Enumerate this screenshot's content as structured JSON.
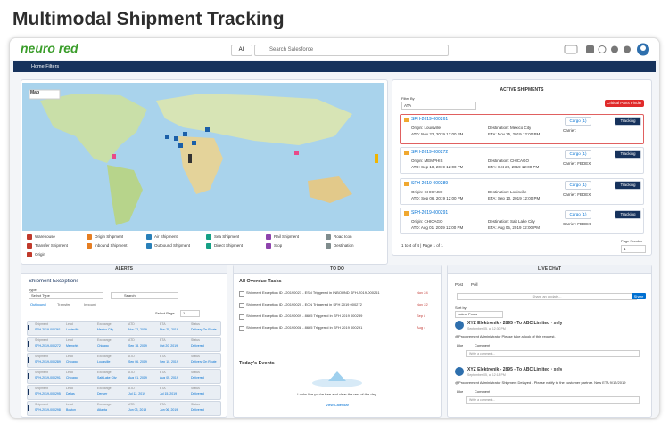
{
  "title": "Multimodal Shipment Tracking",
  "header": {
    "logo": "neuro red",
    "search_scope": "All",
    "search_placeholder": "Search Salesforce"
  },
  "nav": {
    "home_filters": "Home Filters"
  },
  "map": {
    "label": "Map",
    "legend": [
      "Warehouse",
      "Origin Shipment",
      "Air Shipment",
      "Sea Shipment",
      "Rail Shipment",
      "Road Icon",
      "Transfer Shipment",
      "Inbound Shipment",
      "Outbound Shipment",
      "Direct Shipment",
      "Stop",
      "Destination",
      "Origin"
    ]
  },
  "active_shipments": {
    "title": "ACTIVE SHIPMENTS",
    "filter_label": "Filter By",
    "filter_value": "ATA",
    "finder_button": "Critical Parts Finder",
    "shipments": [
      {
        "id": "SFH-2019-000261",
        "origin": "Origin: Louisville",
        "destination": "Destination: Mexico City",
        "atd": "ATD: Nov 22, 2019 12:00 PM",
        "eta": "ETA: Nov 25, 2019 12:00 PM",
        "carrier": "Carrier:",
        "cargo": "Cargo (1)",
        "tracking": "Tracking"
      },
      {
        "id": "SFH-2019-000272",
        "origin": "Origin: MEMPHIS",
        "destination": "Destination: CHICAGO",
        "atd": "ATD: Sep 18, 2019 12:00 PM",
        "eta": "ETA: Oct 20, 2019 12:00 PM",
        "carrier": "Carrier: FEDEX",
        "cargo": "Cargo (1)",
        "tracking": "Tracking"
      },
      {
        "id": "SFH-2019-000289",
        "origin": "Origin: CHICAGO",
        "destination": "Destination: Louisville",
        "atd": "ATD: Sep 06, 2019 12:00 PM",
        "eta": "ETA: Sep 10, 2019 12:00 PM",
        "carrier": "Carrier: FEDEX",
        "cargo": "Cargo (1)",
        "tracking": "Tracking"
      },
      {
        "id": "SFH-2019-000291",
        "origin": "Origin: CHICAGO",
        "destination": "Destination: Salt Lake City",
        "atd": "ATD: Aug 01, 2019 12:00 PM",
        "eta": "ETA: Aug 05, 2019 12:00 PM",
        "carrier": "Carrier: FEDEX",
        "cargo": "Cargo (1)",
        "tracking": "Tracking"
      }
    ],
    "pager": "1 to 4 of 4 | Page 1 of 1",
    "page_number_label": "Page Number",
    "page_number": "1"
  },
  "alerts": {
    "title": "ALERTS",
    "heading": "Shipment Exceptions",
    "type_label": "Type",
    "type_value": "Select Type",
    "search": "Search",
    "tabs": [
      "Outbound",
      "Transfer",
      "Inbound"
    ],
    "page_label": "Select Page",
    "page_value": "1",
    "columns": [
      "Shipment",
      "Lead",
      "Exchange",
      "ATD",
      "ETA",
      "Status"
    ],
    "rows": [
      [
        "SFH-2019-000261",
        "Louisville",
        "Mexico City",
        "Nov 22, 2019",
        "Nov 25, 2019",
        "Delivery On Route"
      ],
      [
        "SFH-2019-000272",
        "Memphis",
        "Chicago",
        "Sep 18, 2019",
        "Oct 20, 2019",
        "Delivered"
      ],
      [
        "SFH-2019-000289",
        "Chicago",
        "Louisville",
        "Sep 06, 2019",
        "Sep 10, 2019",
        "Delivery On Route"
      ],
      [
        "SFH-2019-000291",
        "Chicago",
        "Salt Lake City",
        "Aug 01, 2019",
        "Aug 05, 2019",
        "Delivered"
      ],
      [
        "SFH-2019-000295",
        "Dallas",
        "Denver",
        "Jul 12, 2019",
        "Jul 15, 2019",
        "Delivered"
      ],
      [
        "SFH-2019-000298",
        "Boston",
        "Atlanta",
        "Jun 03, 2019",
        "Jun 06, 2019",
        "Delivered"
      ]
    ]
  },
  "todo": {
    "title": "TO DO",
    "heading": "All Overdue Tasks",
    "tasks": [
      {
        "text": "Shipment Exception ID - 20190021 - ESN Triggered in INBOUND SFH-2019-000261",
        "due": "Nov 24"
      },
      {
        "text": "Shipment Exception ID - 20190020 - ECN Triggered in SFH 2019 000272",
        "due": "Nov 22"
      },
      {
        "text": "Shipment Exception ID - 20190009 - 8665 Triggered in SFH 2019 000289",
        "due": "Sep 8"
      },
      {
        "text": "Shipment Exception ID - 20190008 - 8665 Triggered in SFH 2019 000291",
        "due": "Aug 4"
      }
    ],
    "events_heading": "Today's Events",
    "events_empty": "Looks like you're free and clear the rest of the day.",
    "calendar_link": "View Calendar"
  },
  "live_chat": {
    "title": "LIVE CHAT",
    "tabs": [
      "Post",
      "Poll"
    ],
    "share_placeholder": "Share an update...",
    "share_button": "Share",
    "sort_label": "Sort by",
    "sort_value": "Latest Posts",
    "posts": [
      {
        "author": "XYZ Elektronik - 2895 - To ABC Limited · xely",
        "time": "September 05, at 12:30 PM",
        "body": "@Procurement Administrator Please take a look of this request.",
        "like": "Like",
        "comment": "Comment",
        "reply": "Write a comment..."
      },
      {
        "author": "XYZ Elektronik - 2895 - To ABC Limited · xely",
        "time": "September 05, at 12:18 PM",
        "body": "@Procurement Administrator Shipment Delayed - Please notify to the customer partner. New ETA 9/12/2019",
        "like": "Like",
        "comment": "Comment",
        "reply": "Write a comment..."
      }
    ]
  }
}
